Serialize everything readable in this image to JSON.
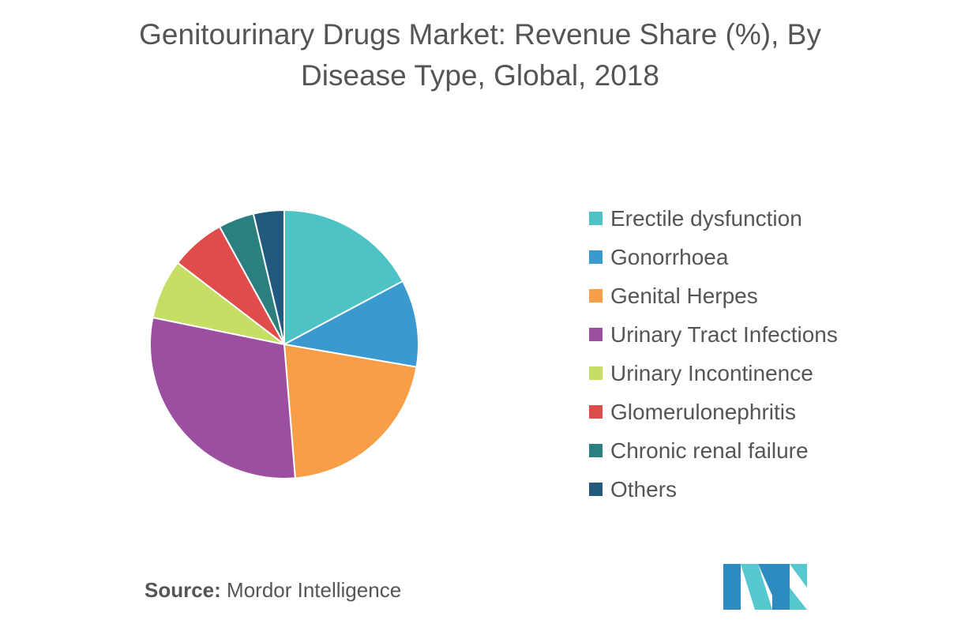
{
  "chart_data": {
    "type": "pie",
    "title": "Genitourinary Drugs Market: Revenue Share (%), By Disease Type, Global, 2018",
    "series": [
      {
        "name": "Erectile dysfunction",
        "value": 17.2,
        "color": "#4DC3C6"
      },
      {
        "name": "Gonorrhoea",
        "value": 10.5,
        "color": "#3A9AD0"
      },
      {
        "name": "Genital Herpes",
        "value": 21.0,
        "color": "#F79E46"
      },
      {
        "name": "Urinary Tract Infections",
        "value": 29.5,
        "color": "#9C4FA1"
      },
      {
        "name": "Urinary Incontinence",
        "value": 7.2,
        "color": "#C5DE63"
      },
      {
        "name": "Glomerulonephritis",
        "value": 6.6,
        "color": "#E04B4B"
      },
      {
        "name": "Chronic renal failure",
        "value": 4.3,
        "color": "#2B7F7E"
      },
      {
        "name": "Others",
        "value": 3.7,
        "color": "#215A7E"
      }
    ],
    "start_angle": "12 o'clock",
    "direction": "clockwise",
    "legend_position": "right"
  },
  "source": {
    "label": "Source:",
    "text": " Mordor Intelligence"
  },
  "logo": {
    "name": "mordor-intelligence-logo",
    "colors": [
      "#2E8BC0",
      "#55C8D0",
      "#1D5F8A"
    ]
  }
}
